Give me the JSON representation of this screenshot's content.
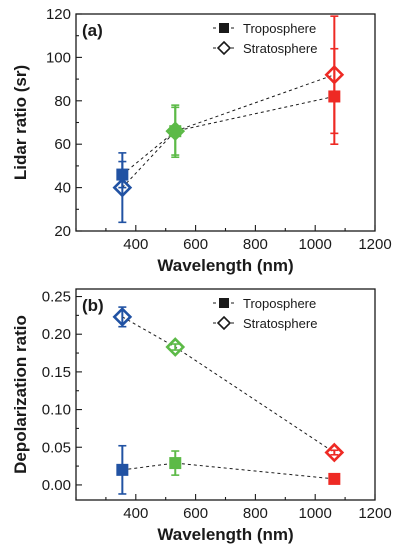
{
  "chart_data": [
    {
      "type": "scatter",
      "panel_label": "(a)",
      "xlabel": "Wavelength (nm)",
      "ylabel": "Lidar ratio (sr)",
      "xlim": [
        200,
        1200
      ],
      "ylim": [
        20,
        120
      ],
      "xticks": [
        400,
        600,
        800,
        1000,
        1200
      ],
      "yticks": [
        20,
        40,
        60,
        80,
        100,
        120
      ],
      "ytick_labels": [
        "20",
        "40",
        "60",
        "80",
        "100",
        "120"
      ],
      "legend_position": "top-right",
      "x": [
        355,
        532,
        1064
      ],
      "point_colors": [
        "#2152a3",
        "#5cba47",
        "#ee2a24"
      ],
      "series": [
        {
          "name": "Troposphere",
          "marker": "filled-square",
          "values": [
            46,
            66,
            82
          ],
          "err": [
            6,
            12,
            22
          ]
        },
        {
          "name": "Stratosphere",
          "marker": "open-diamond",
          "values": [
            40,
            66,
            92
          ],
          "err": [
            16,
            11,
            27
          ]
        }
      ]
    },
    {
      "type": "scatter",
      "panel_label": "(b)",
      "xlabel": "Wavelength (nm)",
      "ylabel": "Depolarization ratio",
      "xlim": [
        200,
        1200
      ],
      "ylim": [
        -0.02,
        0.26
      ],
      "xticks": [
        400,
        600,
        800,
        1000,
        1200
      ],
      "yticks": [
        0.0,
        0.05,
        0.1,
        0.15,
        0.2,
        0.25
      ],
      "ytick_labels": [
        "0.00",
        "0.05",
        "0.10",
        "0.15",
        "0.20",
        "0.25"
      ],
      "legend_position": "top-right",
      "x": [
        355,
        532,
        1064
      ],
      "point_colors": [
        "#2152a3",
        "#5cba47",
        "#ee2a24"
      ],
      "series": [
        {
          "name": "Troposphere",
          "marker": "filled-square",
          "values": [
            0.02,
            0.029,
            0.008
          ],
          "err": [
            0.032,
            0.016,
            0.004
          ]
        },
        {
          "name": "Stratosphere",
          "marker": "open-diamond",
          "values": [
            0.223,
            0.183,
            0.043
          ],
          "err": [
            0.013,
            0.004,
            0.003
          ]
        }
      ]
    }
  ]
}
